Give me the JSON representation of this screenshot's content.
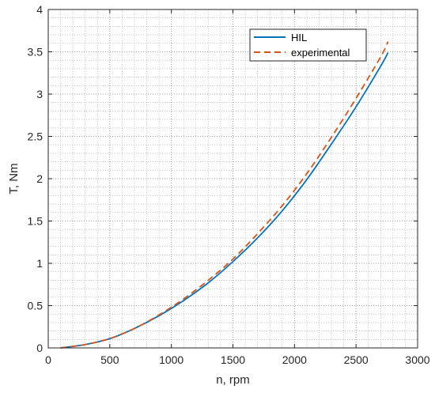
{
  "chart_data": {
    "type": "line",
    "title": "",
    "xlabel": "n, rpm",
    "ylabel": "T, Nm",
    "xlim": [
      0,
      3000
    ],
    "ylim": [
      0,
      4
    ],
    "xticks": [
      0,
      500,
      1000,
      1500,
      2000,
      2500,
      3000
    ],
    "yticks": [
      0,
      0.5,
      1,
      1.5,
      2,
      2.5,
      3,
      3.5,
      4
    ],
    "xtick_labels": [
      "0",
      "500",
      "1000",
      "1500",
      "2000",
      "2500",
      "3000"
    ],
    "ytick_labels": [
      "0",
      "0.5",
      "1",
      "1.5",
      "2",
      "2.5",
      "3",
      "3.5",
      "4"
    ],
    "x_minor_step": 100,
    "y_minor_step": 0.1,
    "grid": true,
    "minor_grid": true,
    "legend_position": "top-right",
    "series": [
      {
        "name": "HIL",
        "color": "#0072BD",
        "line_style": "solid",
        "x": [
          100,
          300,
          500,
          700,
          900,
          1100,
          1300,
          1500,
          1700,
          1900,
          2100,
          2300,
          2500,
          2700,
          2760
        ],
        "y": [
          0.0,
          0.04,
          0.11,
          0.23,
          0.38,
          0.56,
          0.77,
          1.02,
          1.3,
          1.62,
          1.99,
          2.41,
          2.85,
          3.33,
          3.49
        ]
      },
      {
        "name": "experimental",
        "color": "#D95319",
        "line_style": "dashed",
        "x": [
          100,
          300,
          500,
          700,
          900,
          1100,
          1300,
          1500,
          1700,
          1900,
          2100,
          2300,
          2500,
          2700,
          2760
        ],
        "y": [
          0.0,
          0.04,
          0.11,
          0.23,
          0.39,
          0.58,
          0.8,
          1.05,
          1.35,
          1.68,
          2.06,
          2.49,
          2.95,
          3.44,
          3.62
        ]
      }
    ]
  }
}
